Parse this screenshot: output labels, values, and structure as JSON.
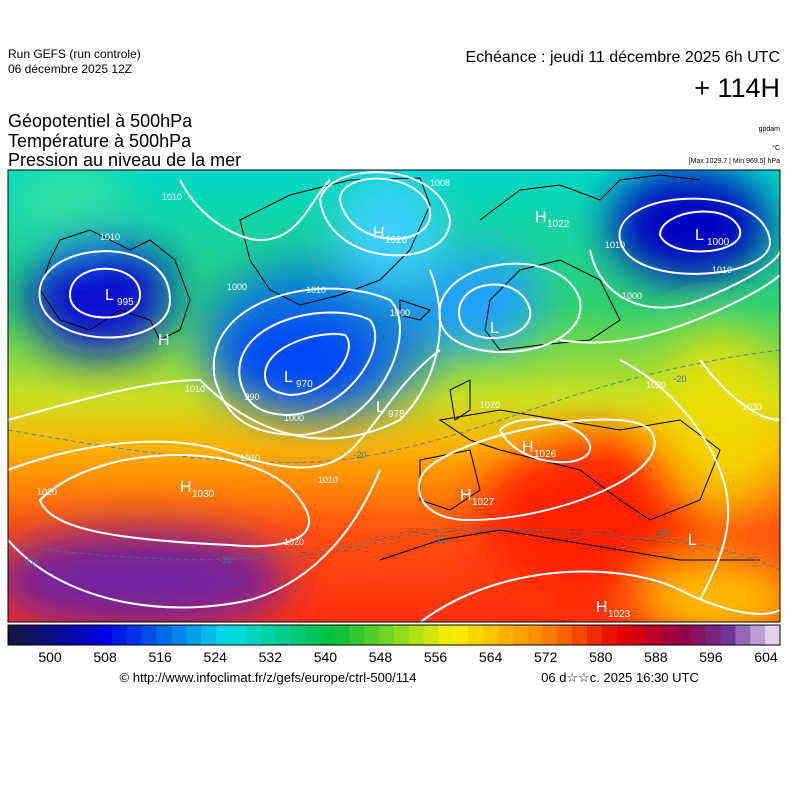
{
  "header": {
    "run": "Run GEFS (run controle)",
    "run_date": "06 décembre 2025 12Z",
    "valid": "Echéance : jeudi 11 décembre 2025 6h UTC",
    "lead": "+ 114H"
  },
  "layers": [
    "Géopotentiel à 500hPa",
    "Température à 500hPa",
    "Pression au niveau de la mer"
  ],
  "units": [
    "gpdam",
    "°C",
    "[Max 1029.7 | Min 969.5] hPa"
  ],
  "pressure_centers": [
    {
      "symbol": "L",
      "value": 995
    },
    {
      "symbol": "H",
      "value": 1026
    },
    {
      "symbol": "H",
      "value": 1022
    },
    {
      "symbol": "L",
      "value": 1000
    },
    {
      "symbol": "H"
    },
    {
      "symbol": "L",
      "value": 970
    },
    {
      "symbol": "L",
      "value": 978
    },
    {
      "symbol": "L"
    },
    {
      "symbol": "H",
      "value": 1026
    },
    {
      "symbol": "H",
      "value": 1027
    },
    {
      "symbol": "H",
      "value": 1030
    },
    {
      "symbol": "H",
      "value": 1023
    },
    {
      "symbol": "L"
    }
  ],
  "isobar_labels": [
    1010,
    1010,
    1000,
    1010,
    1000,
    990,
    1000,
    1010,
    1020,
    1020,
    1020,
    1010,
    1008,
    1010,
    1000,
    1010,
    1020,
    1030,
    1020
  ],
  "temperature_labels": [
    -20,
    -20,
    -20,
    -20,
    -10,
    -10
  ],
  "colorbar": {
    "ticks": [
      500,
      508,
      516,
      524,
      532,
      540,
      548,
      556,
      564,
      572,
      580,
      588,
      596,
      604
    ]
  },
  "footer": {
    "source": "© http://www.infoclimat.fr/z/gefs/europe/ctrl-500/114",
    "generated": "06 d☆☆c. 2025 16:30 UTC"
  }
}
